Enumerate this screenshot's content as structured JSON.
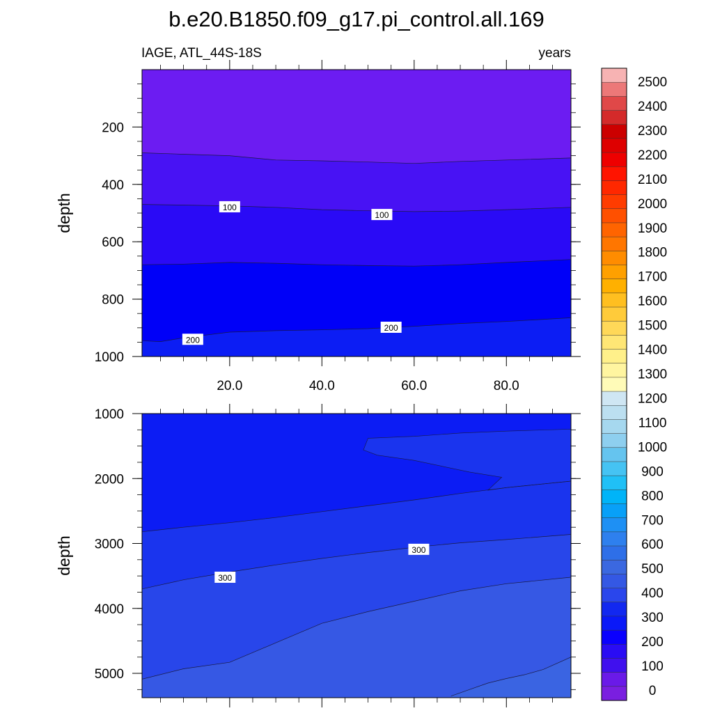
{
  "chart_data": {
    "type": "contour",
    "title": "b.e20.B1850.f09_g17.pi_control.all.169",
    "left_subtitle": "IAGE, ATL_44S-18S",
    "right_subtitle": "years",
    "x_range": [
      1,
      94
    ],
    "x_ticks": [
      "20.0",
      "40.0",
      "60.0",
      "80.0"
    ],
    "x_tick_values": [
      20,
      40,
      60,
      80
    ],
    "panels": [
      {
        "name": "upper-panel",
        "ylabel": "depth",
        "y_range": [
          0,
          1000
        ],
        "y_ticks": [
          "200",
          "400",
          "600",
          "800",
          "1000"
        ],
        "y_tick_values": [
          200,
          400,
          600,
          800,
          1000
        ],
        "contour_lines": [
          {
            "level": 50,
            "x": [
              1,
              10,
              20,
              30,
              40,
              50,
              60,
              70,
              80,
              94
            ],
            "depth": [
              290,
              295,
              300,
              315,
              318,
              322,
              327,
              320,
              315,
              308
            ]
          },
          {
            "level": 100,
            "x": [
              1,
              10,
              20,
              30,
              40,
              50,
              60,
              70,
              80,
              94
            ],
            "depth": [
              470,
              472,
              475,
              480,
              488,
              492,
              495,
              493,
              488,
              480
            ]
          },
          {
            "level": 150,
            "x": [
              1,
              10,
              20,
              30,
              40,
              50,
              60,
              70,
              80,
              94
            ],
            "depth": [
              680,
              678,
              672,
              675,
              680,
              683,
              685,
              680,
              672,
              662
            ]
          },
          {
            "level": 200,
            "x": [
              1,
              5,
              10,
              20,
              30,
              40,
              50,
              60,
              70,
              80,
              94
            ],
            "depth": [
              945,
              948,
              935,
              915,
              910,
              907,
              903,
              895,
              885,
              878,
              865
            ]
          }
        ],
        "contour_labels": [
          {
            "text": "100",
            "x": 20,
            "depth": 478
          },
          {
            "text": "100",
            "x": 53,
            "depth": 505
          },
          {
            "text": "200",
            "x": 12,
            "depth": 940
          },
          {
            "text": "200",
            "x": 55,
            "depth": 898
          }
        ]
      },
      {
        "name": "lower-panel",
        "ylabel": "depth",
        "y_range": [
          1000,
          5375
        ],
        "y_ticks": [
          "1000",
          "2000",
          "3000",
          "4000",
          "5000"
        ],
        "y_tick_values": [
          1000,
          2000,
          3000,
          4000,
          5000
        ],
        "contour_lines": [
          {
            "level": 250,
            "x": [
              1,
              10,
              20,
              30,
              40,
              50,
              60,
              70,
              80,
              94
            ],
            "depth": [
              2820,
              2750,
              2680,
              2600,
              2510,
              2420,
              2330,
              2230,
              2140,
              2040
            ]
          },
          {
            "level": 300,
            "x": [
              1,
              10,
              20,
              30,
              40,
              50,
              60,
              70,
              80,
              94
            ],
            "depth": [
              3700,
              3560,
              3440,
              3330,
              3230,
              3140,
              3060,
              2990,
              2940,
              2860
            ]
          },
          {
            "level": 350,
            "x": [
              1,
              10,
              20,
              30,
              40,
              50,
              60,
              70,
              80,
              94
            ],
            "depth": [
              5090,
              4930,
              4830,
              4530,
              4230,
              4050,
              3890,
              3730,
              3620,
              3520
            ]
          },
          {
            "level": 400,
            "x": [
              68,
              72,
              76,
              80,
              84,
              88,
              94
            ],
            "depth": [
              5350,
              5250,
              5150,
              5080,
              5020,
              4940,
              4750
            ]
          }
        ],
        "intrusion_tongue": {
          "x": [
            49,
            55,
            65,
            72,
            79,
            70,
            60,
            50,
            49
          ],
          "depth": [
            1560,
            1470,
            1380,
            1320,
            1320,
            1400,
            1750,
            1800,
            1560
          ]
        },
        "contour_labels": [
          {
            "text": "300",
            "x": 19,
            "depth": 3520
          },
          {
            "text": "300",
            "x": 61,
            "depth": 3090
          }
        ]
      }
    ],
    "colorbar": {
      "labels": [
        "0",
        "100",
        "200",
        "300",
        "400",
        "500",
        "600",
        "700",
        "800",
        "900",
        "1000",
        "1100",
        "1200",
        "1300",
        "1400",
        "1500",
        "1600",
        "1700",
        "1800",
        "1900",
        "2000",
        "2100",
        "2200",
        "2300",
        "2400",
        "2500"
      ],
      "colors": [
        "#7a1fe0",
        "#6a1ae8",
        "#4010ee",
        "#2a0cf4",
        "#0a00fe",
        "#0a19f8",
        "#1228f0",
        "#2a46ec",
        "#3458e4",
        "#3b68e0",
        "#2e6fe8",
        "#2e80ee",
        "#1e90f4",
        "#08a0f8",
        "#00b4f8",
        "#20c0f6",
        "#45c3f3",
        "#65c4ef",
        "#8ecfef",
        "#a6d8ef",
        "#bcdff0",
        "#cfe6f3",
        "#fffbb8",
        "#fff5a0",
        "#fff08a",
        "#ffe675",
        "#ffd858",
        "#ffcb3a",
        "#ffbf20",
        "#ffb000",
        "#ffa000",
        "#ff8c00",
        "#ff7600",
        "#ff6400",
        "#ff5000",
        "#ff3c00",
        "#ff2800",
        "#ff1400",
        "#ee0000",
        "#de0000",
        "#cc0000",
        "#d42a2a",
        "#e04848",
        "#ec7878",
        "#f7b3b3"
      ]
    },
    "upper_bands": [
      {
        "color": "#6c1cf2"
      },
      {
        "color": "#4812f4"
      },
      {
        "color": "#2a0af6"
      },
      {
        "color": "#0000f8"
      },
      {
        "color": "#0c1df4"
      }
    ],
    "lower_bands": [
      {
        "color": "#0c1cf4"
      },
      {
        "color": "#1a34ee"
      },
      {
        "color": "#2846ea"
      },
      {
        "color": "#3658e4"
      },
      {
        "color": "#3a64e2"
      }
    ]
  }
}
